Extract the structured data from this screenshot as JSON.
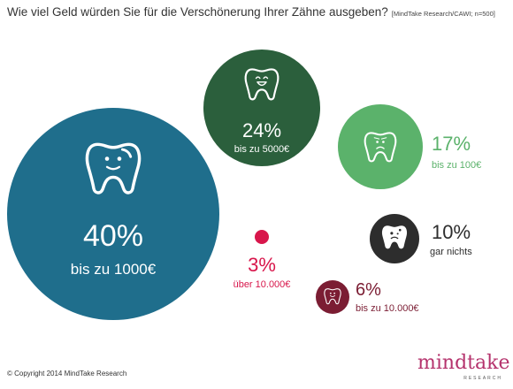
{
  "title": "Wie viel Geld würden Sie für die Verschönerung Ihrer Zähne ausgeben?",
  "source": "[MindTake Research/CAWI; n=500]",
  "copyright": "© Copyright 2014 MindTake Research",
  "logo": {
    "word": "mindtake",
    "sub": "RESEARCH"
  },
  "chart_data": {
    "type": "bubble",
    "title": "Wie viel Geld würden Sie für die Verschönerung Ihrer Zähne ausgeben?",
    "unit": "%",
    "items": [
      {
        "value": 40,
        "pct_label": "40%",
        "label": "bis zu 1000€",
        "color": "#1f6e8c",
        "icon": "happy-tooth-icon"
      },
      {
        "value": 24,
        "pct_label": "24%",
        "label": "bis zu 5000€",
        "color": "#2b5f3c",
        "icon": "laughing-tooth-icon"
      },
      {
        "value": 17,
        "pct_label": "17%",
        "label": "bis zu 100€",
        "color": "#5bb26b",
        "icon": "sad-tooth-icon"
      },
      {
        "value": 10,
        "pct_label": "10%",
        "label": "gar nichts",
        "color": "#2d2d2d",
        "icon": "decayed-tooth-icon"
      },
      {
        "value": 6,
        "pct_label": "6%",
        "label": "bis zu 10.000€",
        "color": "#7b1d33",
        "icon": "smiling-tooth-icon"
      },
      {
        "value": 3,
        "pct_label": "3%",
        "label": "über 10.000€",
        "color": "#d8164b",
        "icon": ""
      }
    ]
  }
}
